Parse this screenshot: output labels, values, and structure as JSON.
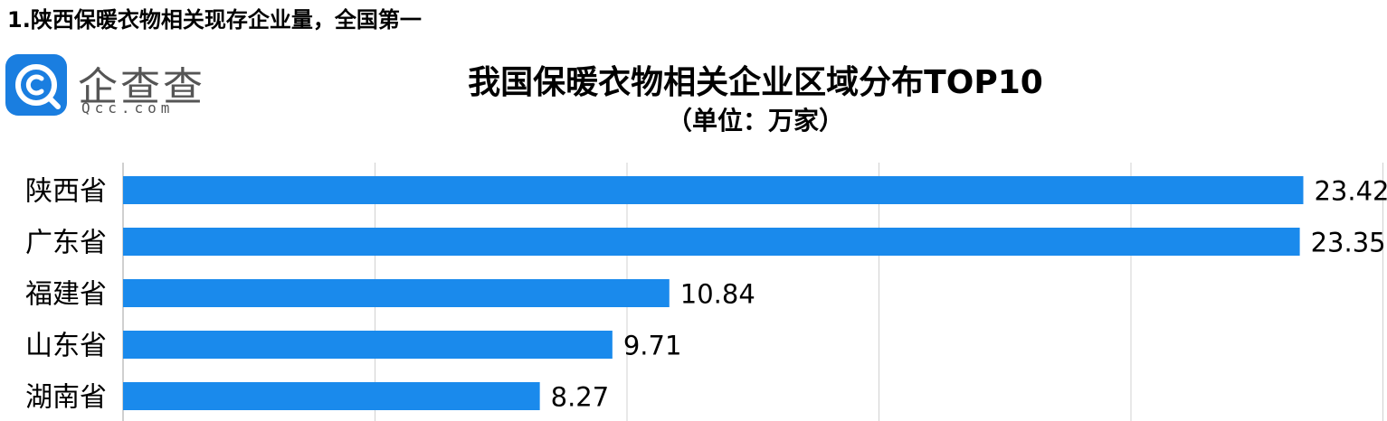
{
  "heading": "1.陕西保暖衣物相关现存企业量，全国第一",
  "logo": {
    "name": "企查查",
    "domain": "Qcc.com",
    "icon": "qcc-logo-icon",
    "brand_color": "#1a7ee0"
  },
  "chart_data": {
    "type": "bar",
    "orientation": "horizontal",
    "title": "我国保暖衣物相关企业区域分布TOP10",
    "subtitle": "（单位：万家）",
    "categories": [
      "陕西省",
      "广东省",
      "福建省",
      "山东省",
      "湖南省"
    ],
    "values": [
      23.42,
      23.35,
      10.84,
      9.71,
      8.27
    ],
    "value_labels": [
      "23.42",
      "23.35",
      "10.84",
      "9.71",
      "8.27"
    ],
    "xlim": [
      0,
      25
    ],
    "grid": true,
    "bar_color": "#1a8aec"
  }
}
